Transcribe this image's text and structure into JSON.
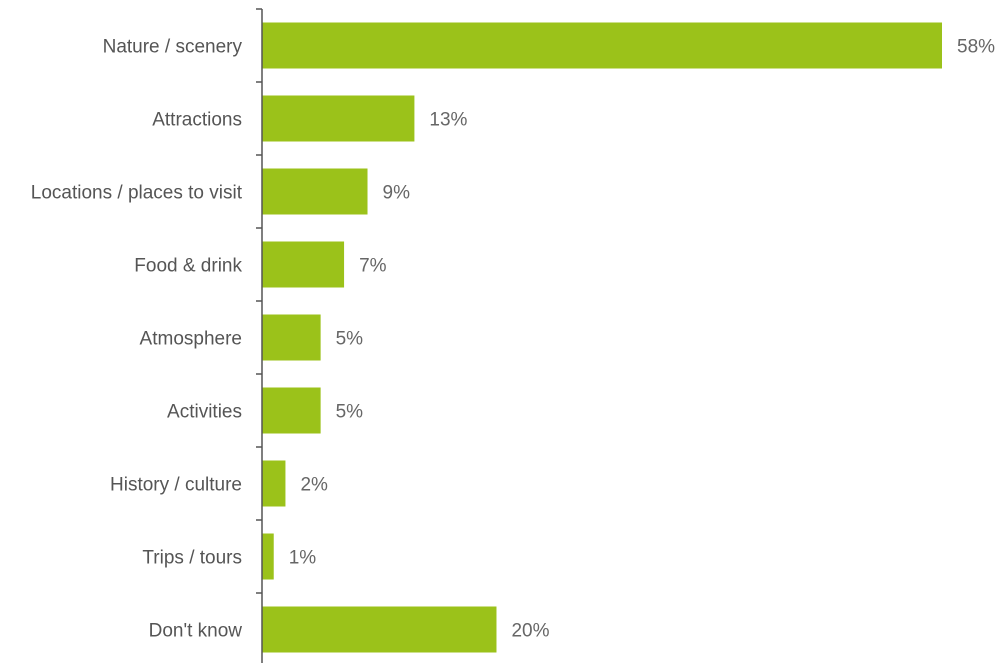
{
  "chart_data": {
    "type": "bar",
    "orientation": "horizontal",
    "categories": [
      "Nature / scenery",
      "Attractions",
      "Locations / places to visit",
      "Food & drink",
      "Atmosphere",
      "Activities",
      "History / culture",
      "Trips / tours",
      "Don't know"
    ],
    "values": [
      58,
      13,
      9,
      7,
      5,
      5,
      2,
      1,
      20
    ],
    "value_labels": [
      "58%",
      "13%",
      "9%",
      "7%",
      "5%",
      "5%",
      "2%",
      "1%",
      "20%"
    ],
    "unit": "%",
    "bar_color": "#9bc21a",
    "xlim": [
      0,
      58
    ],
    "grid": false,
    "legend": "none",
    "title": "",
    "xlabel": "",
    "ylabel": ""
  }
}
